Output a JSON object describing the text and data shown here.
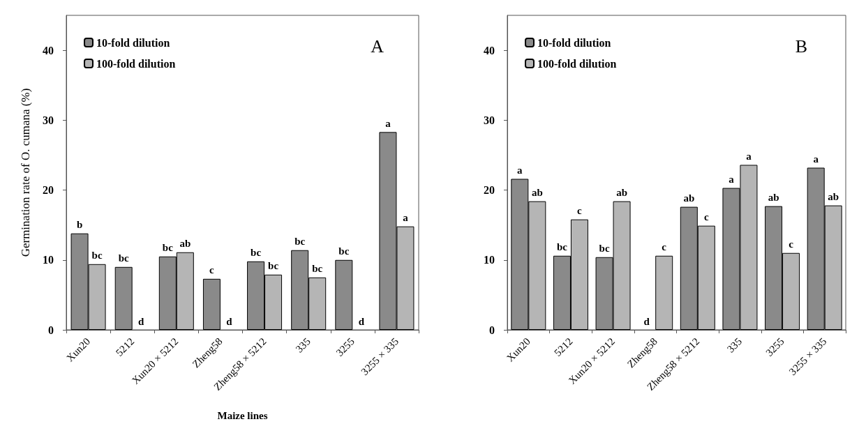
{
  "chart_data": [
    {
      "type": "bar",
      "title": "A",
      "xlabel": "Maize lines",
      "ylabel": "Germination rate of O. cumana (%)",
      "categories": [
        "Xun20",
        "5212",
        "Xun20 × 5212",
        "Zheng58",
        "Zheng58 × 5212",
        "335",
        "3255",
        "3255 × 335"
      ],
      "series": [
        {
          "name": "10-fold dilution",
          "color": "#8a8a8a",
          "values": [
            13.8,
            9.0,
            10.5,
            7.3,
            9.8,
            11.4,
            10.0,
            28.3
          ],
          "value_labels": [
            "b",
            "bc",
            "bc",
            "c",
            "bc",
            "bc",
            "bc",
            "a"
          ]
        },
        {
          "name": "100-fold dilution",
          "color": "#b5b5b5",
          "values": [
            9.4,
            0,
            11.1,
            0,
            7.9,
            7.5,
            0,
            14.8
          ],
          "value_labels": [
            "bc",
            "d",
            "ab",
            "d",
            "bc",
            "bc",
            "d",
            "a"
          ]
        }
      ],
      "ylim": [
        0,
        45
      ],
      "yticks": [
        0,
        10,
        20,
        30,
        40
      ],
      "grid": false,
      "legend": "top left"
    },
    {
      "type": "bar",
      "title": "B",
      "categories": [
        "Xun20",
        "5212",
        "Xun20 × 5212",
        "Zheng58",
        "Zheng58 × 5212",
        "335",
        "3255",
        "3255 × 335"
      ],
      "series": [
        {
          "name": "10-fold dilution",
          "color": "#8a8a8a",
          "values": [
            21.6,
            10.6,
            10.4,
            0,
            17.6,
            20.3,
            17.7,
            23.2
          ],
          "value_labels": [
            "a",
            "bc",
            "bc",
            "d",
            "ab",
            "a",
            "ab",
            "a"
          ]
        },
        {
          "name": "100-fold dilution",
          "color": "#b5b5b5",
          "values": [
            18.4,
            15.8,
            18.4,
            10.6,
            14.9,
            23.6,
            11.0,
            17.8
          ],
          "value_labels": [
            "ab",
            "c",
            "ab",
            "c",
            "c",
            "a",
            "c",
            "ab"
          ]
        }
      ],
      "ylim": [
        0,
        45
      ],
      "yticks": [
        0,
        10,
        20,
        30,
        40
      ],
      "grid": false,
      "legend": "top left"
    }
  ]
}
